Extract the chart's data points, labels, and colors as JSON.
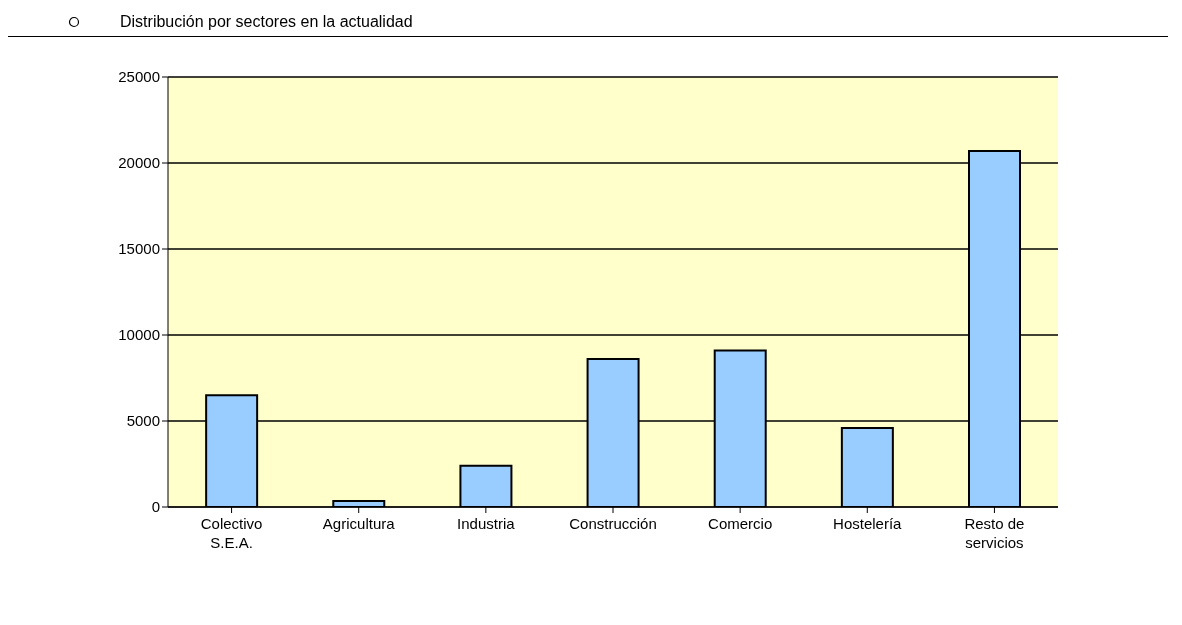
{
  "chart_data": {
    "type": "bar",
    "title": "Distribución por sectores en la actualidad",
    "categories": [
      "Colectivo S.E.A.",
      "Agricultura",
      "Industria",
      "Construcción",
      "Comercio",
      "Hostelería",
      "Resto de servicios"
    ],
    "values": [
      6500,
      350,
      2400,
      8600,
      9100,
      4600,
      20700
    ],
    "color": "#99ccff",
    "ylim": [
      0,
      25000
    ],
    "yticks": [
      0,
      5000,
      10000,
      15000,
      20000,
      25000
    ],
    "grid": "y"
  }
}
